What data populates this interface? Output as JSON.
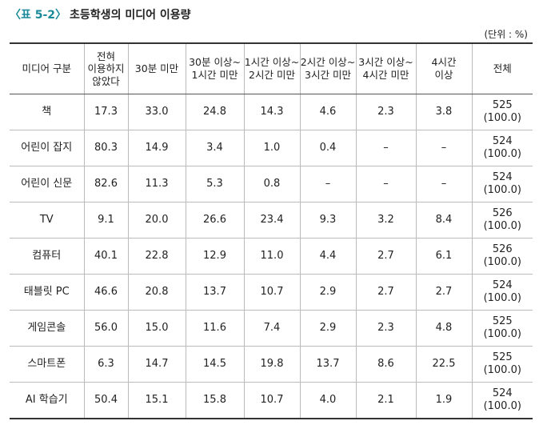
{
  "header": {
    "label": "〈표 5-2〉",
    "title": "초등학생의 미디어 이용량",
    "unit": "(단위 : %)"
  },
  "table": {
    "columns": [
      "미디어 구분",
      "전혀\n이용하지\n않았다",
      "30분 미만",
      "30분 이상~\n1시간 미만",
      "1시간 이상~\n2시간 미만",
      "2시간 이상~\n3시간 미만",
      "3시간 이상~\n4시간 미만",
      "4시간\n이상",
      "전체"
    ],
    "rows": [
      [
        "책",
        "17.3",
        "33.0",
        "24.8",
        "14.3",
        "4.6",
        "2.3",
        "3.8",
        "525\n(100.0)"
      ],
      [
        "어린이 잡지",
        "80.3",
        "14.9",
        "3.4",
        "1.0",
        "0.4",
        "–",
        "–",
        "524\n(100.0)"
      ],
      [
        "어린이 신문",
        "82.6",
        "11.3",
        "5.3",
        "0.8",
        "–",
        "–",
        "–",
        "524\n(100.0)"
      ],
      [
        "TV",
        "9.1",
        "20.0",
        "26.6",
        "23.4",
        "9.3",
        "3.2",
        "8.4",
        "526\n(100.0)"
      ],
      [
        "컴퓨터",
        "40.1",
        "22.8",
        "12.9",
        "11.0",
        "4.4",
        "2.7",
        "6.1",
        "526\n(100.0)"
      ],
      [
        "태블릿 PC",
        "46.6",
        "20.8",
        "13.7",
        "10.7",
        "2.9",
        "2.7",
        "2.7",
        "524\n(100.0)"
      ],
      [
        "게임콘솔",
        "56.0",
        "15.0",
        "11.6",
        "7.4",
        "2.9",
        "2.3",
        "4.8",
        "525\n(100.0)"
      ],
      [
        "스마트폰",
        "6.3",
        "14.7",
        "14.5",
        "19.8",
        "13.7",
        "8.6",
        "22.5",
        "525\n(100.0)"
      ],
      [
        "AI 학습기",
        "50.4",
        "15.1",
        "15.8",
        "10.7",
        "4.0",
        "2.1",
        "1.9",
        "524\n(100.0)"
      ]
    ]
  }
}
